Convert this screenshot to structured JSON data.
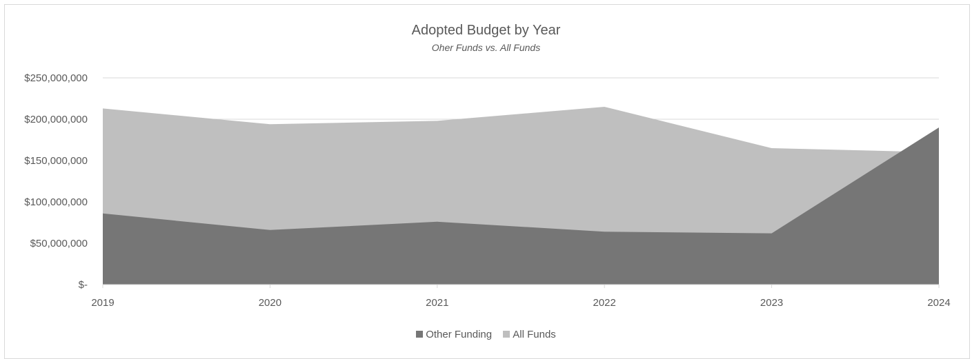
{
  "chart_data": {
    "type": "area",
    "title": "Adopted Budget by Year",
    "subtitle": "Oher Funds vs. All Funds",
    "categories": [
      "2019",
      "2020",
      "2021",
      "2022",
      "2023",
      "2024"
    ],
    "series": [
      {
        "name": "All Funds",
        "values": [
          213000000,
          194000000,
          198000000,
          215000000,
          165000000,
          160000000
        ],
        "color": "#bfbfbf"
      },
      {
        "name": "Other Funding",
        "values": [
          86000000,
          66000000,
          76000000,
          64000000,
          62000000,
          190000000
        ],
        "color": "#767676"
      }
    ],
    "ylim": [
      0,
      250000000
    ],
    "yticks": [
      {
        "value": 0,
        "label": "$-"
      },
      {
        "value": 50000000,
        "label": "$50,000,000"
      },
      {
        "value": 100000000,
        "label": "$100,000,000"
      },
      {
        "value": 150000000,
        "label": "$150,000,000"
      },
      {
        "value": 200000000,
        "label": "$200,000,000"
      },
      {
        "value": 250000000,
        "label": "$250,000,000"
      }
    ],
    "grid": true,
    "legend_position": "bottom",
    "legend": [
      {
        "label": "Other Funding",
        "color": "#767676"
      },
      {
        "label": "All Funds",
        "color": "#bfbfbf"
      }
    ]
  }
}
